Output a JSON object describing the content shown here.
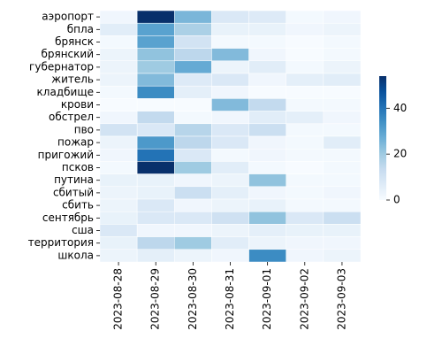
{
  "chart_data": {
    "type": "heatmap",
    "x": [
      "2023-08-28",
      "2023-08-29",
      "2023-08-30",
      "2023-08-31",
      "2023-09-01",
      "2023-09-02",
      "2023-09-03"
    ],
    "y": [
      "аэропорт",
      "бпла",
      "брянск",
      "брянский",
      "губернатор",
      "житель",
      "кладбище",
      "крови",
      "обстрел",
      "пво",
      "пожар",
      "пригожий",
      "псков",
      "путина",
      "сбитый",
      "сбить",
      "сентябрь",
      "сша",
      "территория",
      "школа"
    ],
    "values": [
      [
        2,
        54,
        25,
        8,
        7,
        1,
        2
      ],
      [
        6,
        30,
        18,
        4,
        4,
        2,
        3
      ],
      [
        1,
        30,
        10,
        1,
        1,
        0,
        1
      ],
      [
        3,
        22,
        15,
        24,
        2,
        0,
        1
      ],
      [
        3,
        20,
        28,
        3,
        6,
        1,
        3
      ],
      [
        3,
        24,
        7,
        8,
        2,
        5,
        6
      ],
      [
        1,
        35,
        5,
        2,
        0,
        0,
        0
      ],
      [
        0,
        0,
        0,
        24,
        14,
        1,
        1
      ],
      [
        2,
        14,
        1,
        2,
        6,
        5,
        2
      ],
      [
        10,
        8,
        16,
        8,
        12,
        1,
        1
      ],
      [
        3,
        32,
        15,
        8,
        2,
        1,
        6
      ],
      [
        2,
        40,
        8,
        1,
        2,
        1,
        1
      ],
      [
        1,
        54,
        20,
        6,
        1,
        0,
        1
      ],
      [
        4,
        4,
        2,
        3,
        22,
        1,
        1
      ],
      [
        3,
        4,
        12,
        5,
        2,
        1,
        2
      ],
      [
        3,
        8,
        2,
        3,
        4,
        1,
        1
      ],
      [
        4,
        8,
        8,
        11,
        22,
        8,
        12
      ],
      [
        8,
        2,
        2,
        3,
        5,
        4,
        4
      ],
      [
        4,
        15,
        20,
        6,
        3,
        2,
        2
      ],
      [
        3,
        5,
        3,
        2,
        35,
        2,
        3
      ]
    ],
    "colormap": [
      "#f7fbff",
      "#deebf7",
      "#c6dbef",
      "#9ecae1",
      "#6baed6",
      "#4292c6",
      "#2171b5",
      "#08519c",
      "#08306b"
    ],
    "clim": [
      0,
      54
    ],
    "cticks": [
      0,
      20,
      40
    ]
  }
}
